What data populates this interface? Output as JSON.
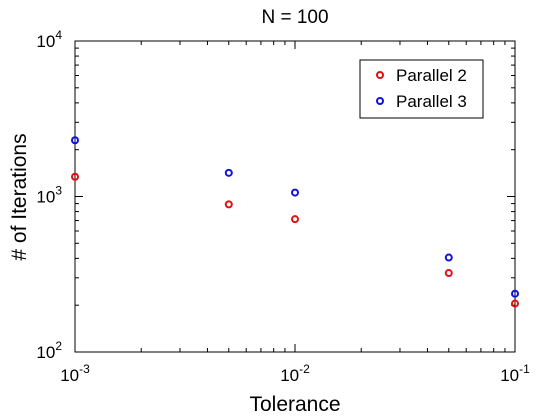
{
  "chart_data": {
    "type": "scatter",
    "title": "N = 100",
    "xlabel": "Tolerance",
    "ylabel": "# of Iterations",
    "xscale": "log",
    "yscale": "log",
    "xlim": [
      0.001,
      0.1
    ],
    "ylim": [
      100,
      10000
    ],
    "grid": false,
    "legend_position": "top-right",
    "x_ticks": [
      {
        "value": 0.001,
        "base": "10",
        "exp": "-3"
      },
      {
        "value": 0.01,
        "base": "10",
        "exp": "-2"
      },
      {
        "value": 0.1,
        "base": "10",
        "exp": "-1"
      }
    ],
    "y_ticks": [
      {
        "value": 100,
        "base": "10",
        "exp": "2"
      },
      {
        "value": 1000,
        "base": "10",
        "exp": "3"
      },
      {
        "value": 10000,
        "base": "10",
        "exp": "4"
      }
    ],
    "series": [
      {
        "name": "Parallel 2",
        "color": "#e01010",
        "points": [
          {
            "x": 0.001,
            "y": 1340
          },
          {
            "x": 0.005,
            "y": 890
          },
          {
            "x": 0.01,
            "y": 715
          },
          {
            "x": 0.05,
            "y": 322
          },
          {
            "x": 0.1,
            "y": 205
          }
        ]
      },
      {
        "name": "Parallel 3",
        "color": "#1010e0",
        "points": [
          {
            "x": 0.001,
            "y": 2300
          },
          {
            "x": 0.005,
            "y": 1420
          },
          {
            "x": 0.01,
            "y": 1060
          },
          {
            "x": 0.05,
            "y": 405
          },
          {
            "x": 0.1,
            "y": 237
          }
        ]
      }
    ]
  }
}
